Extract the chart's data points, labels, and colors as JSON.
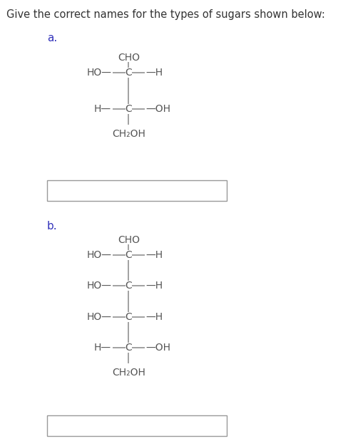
{
  "title": "Give the correct names for the types of sugars shown below:",
  "title_color": "#333333",
  "bg_color": "#ffffff",
  "text_color": "#555555",
  "label_color": "#3333bb",
  "bond_color": "#888888",
  "font_size_title": 10.5,
  "font_size_label": 11,
  "font_size_atom": 10,
  "box_edge_color": "#999999",
  "struct_a": {
    "top_label": "CHO",
    "rows": [
      {
        "left": "HO",
        "right": "H"
      },
      {
        "left": "H",
        "right": "OH"
      }
    ],
    "bottom_label": "CH₂OH"
  },
  "struct_b": {
    "top_label": "CHO",
    "rows": [
      {
        "left": "HO",
        "right": "H"
      },
      {
        "left": "HO",
        "right": "H"
      },
      {
        "left": "HO",
        "right": "H"
      },
      {
        "left": "H",
        "right": "OH"
      }
    ],
    "bottom_label": "CH₂OH"
  }
}
